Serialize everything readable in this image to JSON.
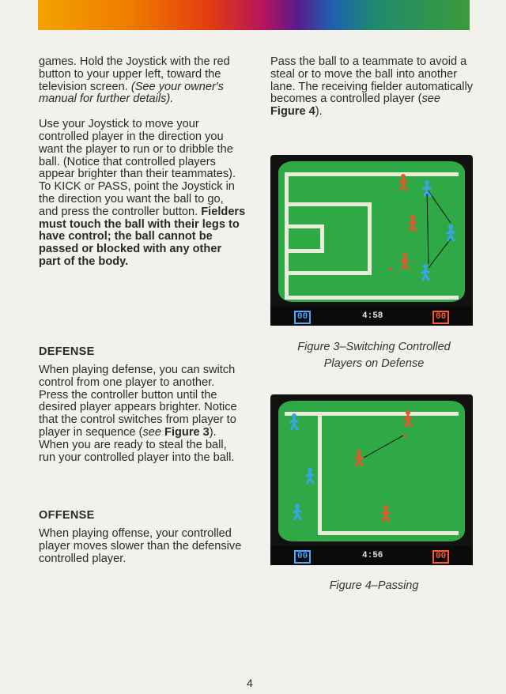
{
  "left": {
    "p1_text": "games. Hold the Joystick with the red button to your upper left, toward the television screen.",
    "p1_italic": "(See your owner's manual for further details).",
    "p2_text": "Use your Joystick to move your controlled player in the direction you want the player to run or to dribble the ball. (Notice that controlled players appear brighter than their teammates). To KICK or PASS, point the Joystick in the direction you want the ball to go, and press the controller button.",
    "p2_bold": "Fielders must touch the ball with their legs to have control; the ball cannot be passed or blocked with any other part of the body.",
    "defense_heading": "DEFENSE",
    "defense_text_1": "When playing defense, you can switch control from one player to another. Press the controller button until the desired player appears brighter. Notice that the control switches from player to player in sequence (",
    "defense_see": "see",
    "defense_fig": "Figure 3",
    "defense_text_2": "). When you are ready to steal the ball, run your controlled player into the ball.",
    "offense_heading": "OFFENSE",
    "offense_text": "When playing offense, your controlled player moves slower than the defensive controlled player."
  },
  "right": {
    "p1_text": "Pass the ball to a teammate to avoid a steal or to move the ball into another lane. The receiving fielder automatically becomes a controlled player (",
    "p1_see": "see",
    "p1_fig": "Figure 4",
    "p1_end": ")."
  },
  "figure3": {
    "caption_line1": "Figure 3–Switching Controlled",
    "caption_line2": "Players on Defense",
    "score_home": "00",
    "clock": "4:58",
    "score_away": "00"
  },
  "figure4": {
    "caption": "Figure 4–Passing",
    "score_home": "00",
    "clock": "4:56",
    "score_away": "00"
  },
  "page_number": "4",
  "colors": {
    "field": "#2fa846",
    "team_red": "#e05a2a",
    "team_blue": "#3aa4e8"
  }
}
